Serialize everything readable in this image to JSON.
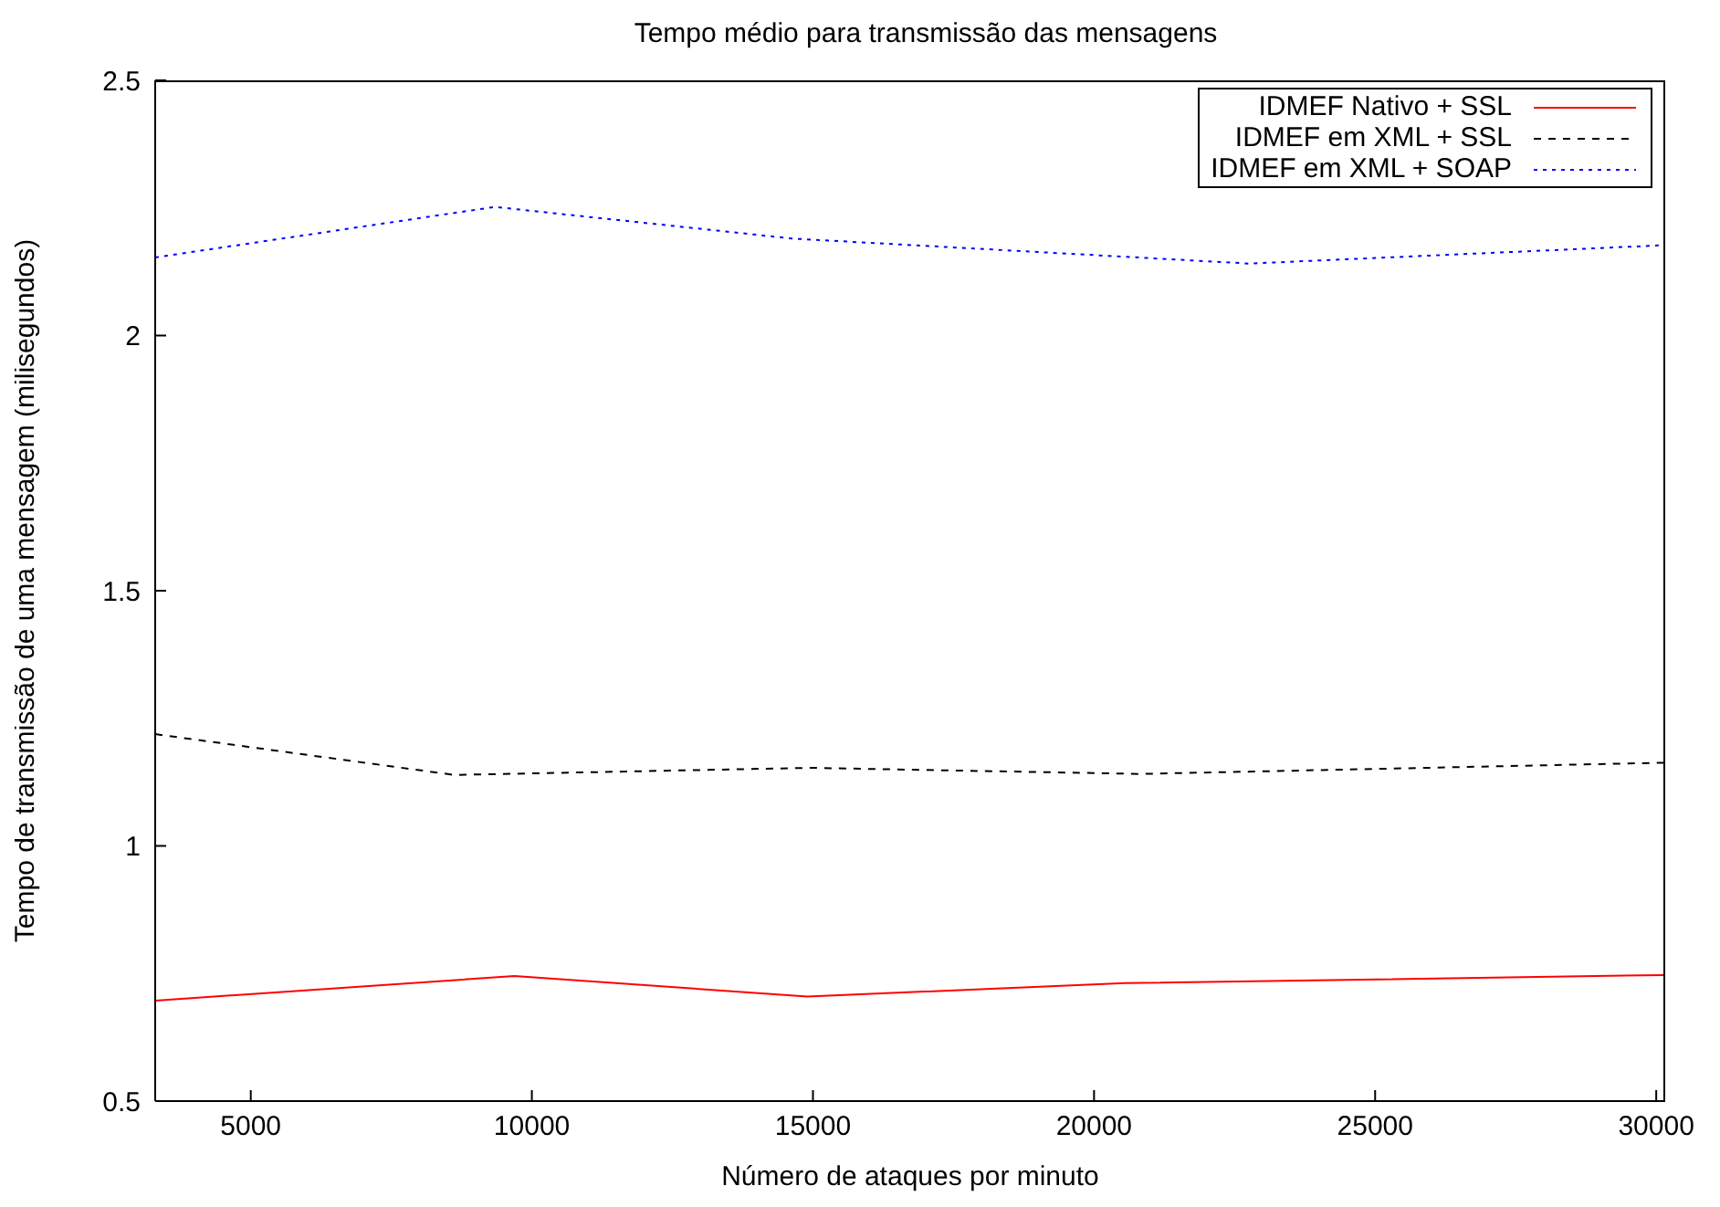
{
  "chart_data": {
    "type": "line",
    "title": "Tempo médio para transmissão das mensagens",
    "xlabel": "Número de ataques por minuto",
    "ylabel": "Tempo de transmissão de uma mensagem (milisegundos)",
    "xlim": [
      3300,
      30160
    ],
    "xticks": [
      5000,
      10000,
      15000,
      20000,
      25000,
      30000
    ],
    "ylim": [
      0.5,
      2.5
    ],
    "yticks": [
      0.5,
      1,
      1.5,
      2,
      2.5
    ],
    "grid": false,
    "legend": "top right",
    "marker": "none",
    "series": [
      {
        "name": "IDMEF Nativo + SSL",
        "color": "#ff0000",
        "line_style": "solid",
        "x": [
          3300,
          9690,
          14900,
          20550,
          30150
        ],
        "values": [
          0.697,
          0.745,
          0.705,
          0.731,
          0.747
        ]
      },
      {
        "name": "IDMEF em XML + SSL",
        "color": "#000000",
        "line_style": "dashed",
        "x": [
          3300,
          8620,
          14950,
          20820,
          30150
        ],
        "values": [
          1.219,
          1.139,
          1.153,
          1.141,
          1.163
        ]
      },
      {
        "name": "IDMEF em XML + SOAP",
        "color": "#0000ff",
        "line_style": "dotted",
        "x": [
          3300,
          9340,
          14630,
          22760,
          30150
        ],
        "values": [
          2.153,
          2.252,
          2.19,
          2.141,
          2.177
        ]
      }
    ]
  }
}
